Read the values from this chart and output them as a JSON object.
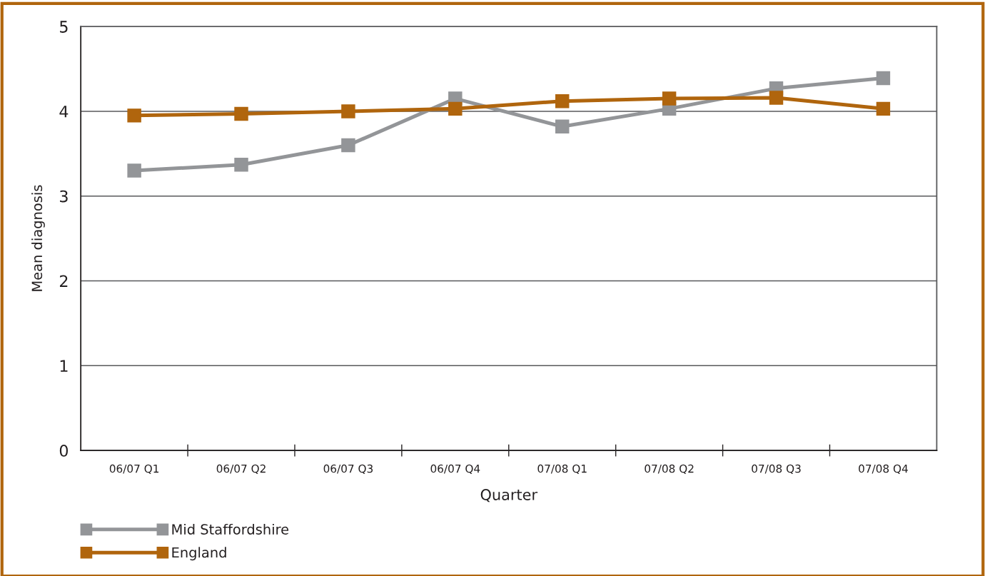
{
  "chart_data": {
    "type": "line",
    "xlabel": "Quarter",
    "ylabel": "Mean diagnosis",
    "categories": [
      "06/07 Q1",
      "06/07 Q2",
      "06/07 Q3",
      "06/07 Q4",
      "07/08 Q1",
      "07/08 Q2",
      "07/08 Q3",
      "07/08 Q4"
    ],
    "series": [
      {
        "name": "Mid Staffordshire",
        "color": "#939598",
        "values": [
          3.3,
          3.37,
          3.6,
          4.15,
          3.82,
          4.03,
          4.27,
          4.39
        ]
      },
      {
        "name": "England",
        "color": "#b0650d",
        "values": [
          3.95,
          3.97,
          4.0,
          4.03,
          4.12,
          4.15,
          4.16,
          4.03
        ]
      }
    ],
    "ylim": [
      0,
      5
    ],
    "yticks": [
      0,
      1,
      2,
      3,
      4,
      5
    ],
    "grid": "y",
    "legend": "bottom left",
    "marker": "square",
    "line_style": "solid"
  }
}
